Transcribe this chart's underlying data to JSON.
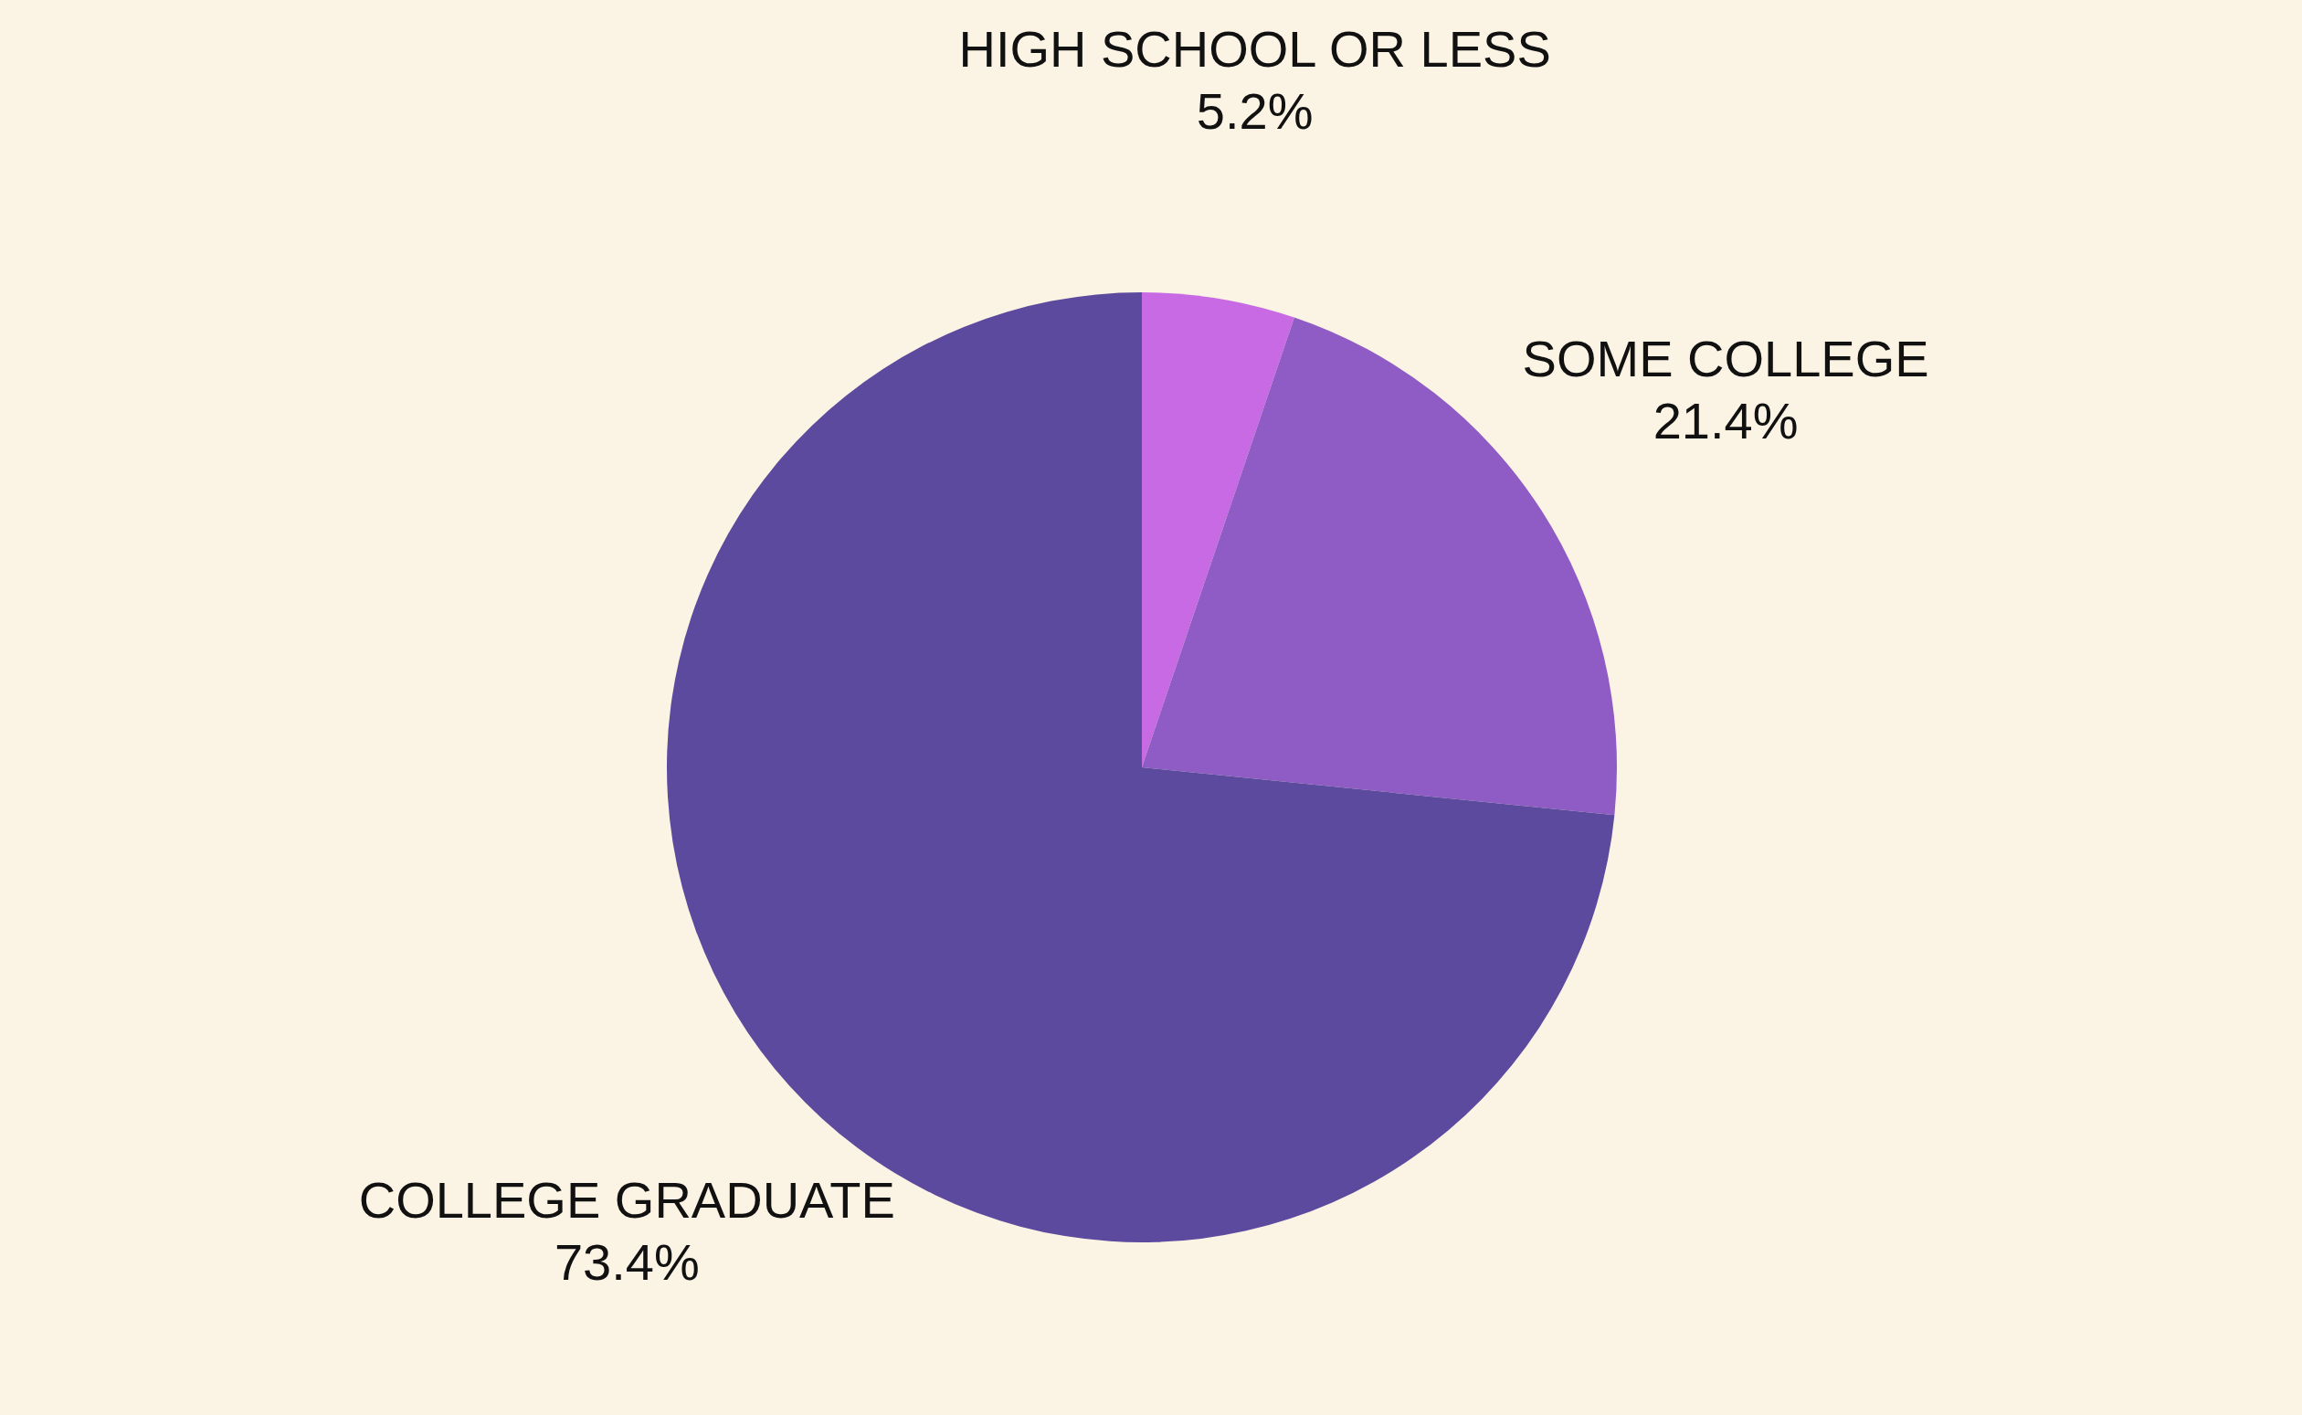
{
  "chart_data": {
    "type": "pie",
    "categories": [
      "HIGH SCHOOL OR LESS",
      "SOME COLLEGE",
      "COLLEGE GRADUATE"
    ],
    "values": [
      5.2,
      21.4,
      73.4
    ],
    "value_labels": [
      "5.2%",
      "21.4%",
      "73.4%"
    ],
    "colors": [
      "#c86ae3",
      "#8f5bc4",
      "#5c4a9e"
    ]
  }
}
